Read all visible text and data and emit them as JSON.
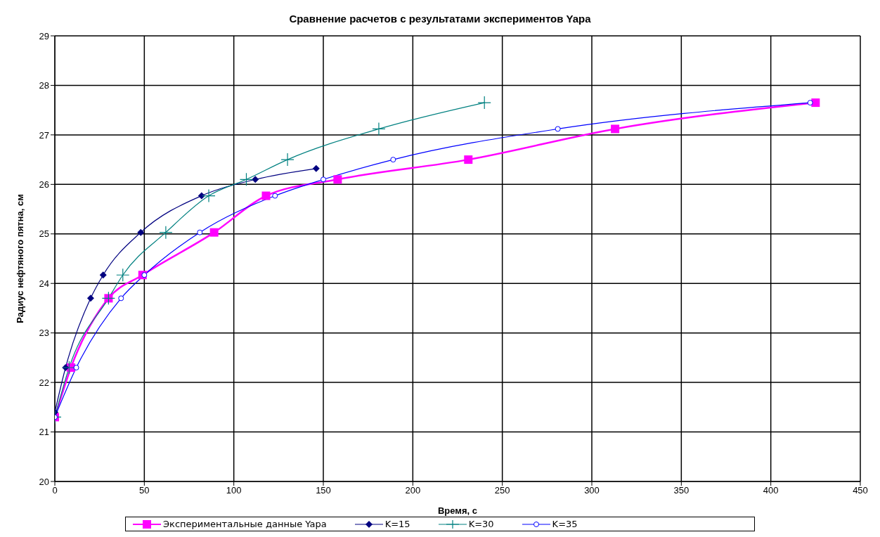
{
  "chart_data": {
    "type": "line",
    "title": "Сравнение расчетов с результатами экспериментов Yapa",
    "xlabel": "Время, с",
    "ylabel": "Радиус нефтяного пятна, см",
    "xlim": [
      0,
      450
    ],
    "xticks": [
      0,
      50,
      100,
      150,
      200,
      250,
      300,
      350,
      400,
      450
    ],
    "ylim": [
      20,
      29
    ],
    "yticks": [
      20,
      21,
      22,
      23,
      24,
      25,
      26,
      27,
      28,
      29
    ],
    "grid": true,
    "legend": "bottom",
    "series": [
      {
        "name": "Экспериментальные данные Yapa",
        "color": "#ff00ff",
        "marker": "square",
        "x": [
          0,
          9,
          30,
          49,
          89,
          118,
          158,
          231,
          313,
          425
        ],
        "values": [
          21.3,
          22.3,
          23.7,
          24.17,
          25.03,
          25.77,
          26.1,
          26.5,
          27.12,
          27.65
        ]
      },
      {
        "name": "K=15",
        "color": "#000080",
        "marker": "diamond",
        "x": [
          0,
          6,
          20,
          27,
          48,
          82,
          112,
          146
        ],
        "values": [
          21.4,
          22.3,
          23.7,
          24.17,
          25.03,
          25.77,
          26.1,
          26.32
        ]
      },
      {
        "name": "K=30",
        "color": "#008080",
        "marker": "cross",
        "x": [
          0,
          8,
          30,
          38,
          62,
          86,
          107,
          130,
          181,
          240
        ],
        "values": [
          21.3,
          22.3,
          23.7,
          24.17,
          25.03,
          25.77,
          26.1,
          26.5,
          27.12,
          27.65
        ]
      },
      {
        "name": "K=35",
        "color": "#0000ff",
        "marker": "circle",
        "x": [
          0,
          12,
          37,
          50,
          81,
          123,
          150,
          189,
          281,
          422
        ],
        "values": [
          21.3,
          22.3,
          23.7,
          24.17,
          25.03,
          25.77,
          26.1,
          26.5,
          27.12,
          27.65
        ]
      }
    ]
  }
}
